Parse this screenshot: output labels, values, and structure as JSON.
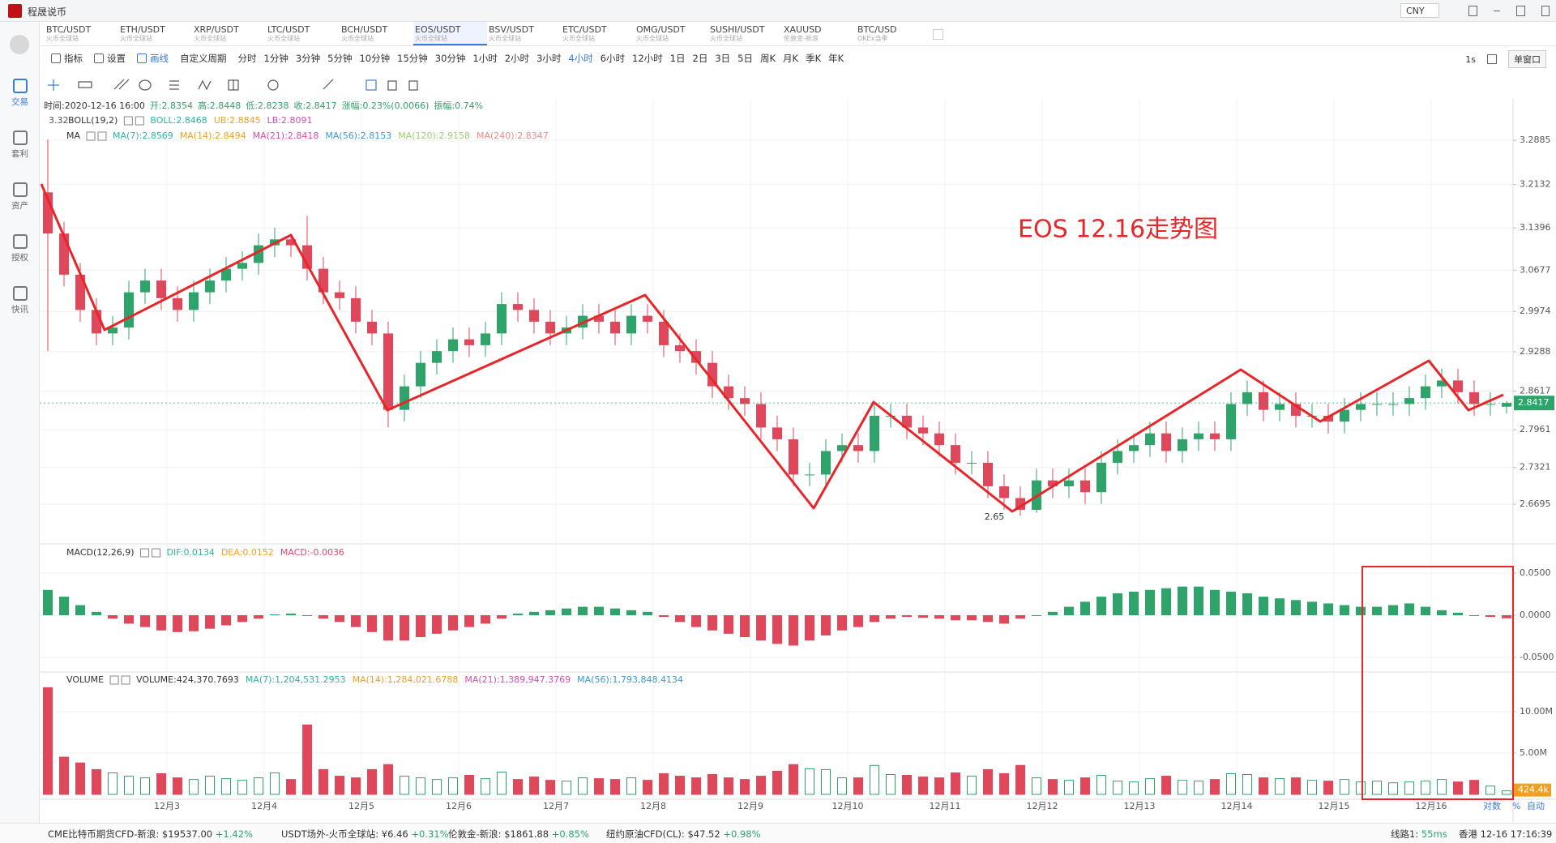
{
  "app": {
    "title": "程晟说币",
    "currency": "CNY"
  },
  "tabs": [
    {
      "pair": "BTC/USDT",
      "source": "火币全球站"
    },
    {
      "pair": "ETH/USDT",
      "source": "火币全球站"
    },
    {
      "pair": "XRP/USDT",
      "source": "火币全球站"
    },
    {
      "pair": "LTC/USDT",
      "source": "火币全球站"
    },
    {
      "pair": "BCH/USDT",
      "source": "火币全球站"
    },
    {
      "pair": "EOS/USDT",
      "source": "火币全球站"
    },
    {
      "pair": "BSV/USDT",
      "source": "火币全球站"
    },
    {
      "pair": "ETC/USDT",
      "source": "火币全球站"
    },
    {
      "pair": "OMG/USDT",
      "source": "火币全球站"
    },
    {
      "pair": "SUSHI/USDT",
      "source": "火币全球站"
    },
    {
      "pair": "XAUUSD",
      "source": "伦敦金-新浪"
    },
    {
      "pair": "BTC/USD",
      "source": "OKEx当季"
    }
  ],
  "active_tab": 5,
  "sidebar": [
    "交易",
    "套利",
    "资产",
    "授权",
    "快讯"
  ],
  "toolbar": {
    "tools": [
      "指标",
      "设置",
      "画线"
    ],
    "custom": "自定义周期",
    "periods": [
      "分时",
      "1分钟",
      "3分钟",
      "5分钟",
      "10分钟",
      "15分钟",
      "30分钟",
      "1小时",
      "2小时",
      "3小时",
      "4小时",
      "6小时",
      "12小时",
      "1日",
      "2日",
      "3日",
      "5日",
      "周K",
      "月K",
      "季K",
      "年K"
    ],
    "active_period": 10,
    "refresh": "1s",
    "window": "单窗口"
  },
  "info": [
    "时间:2020-12-16 16:00",
    "开:2.8354",
    "高:2.8448",
    "低:2.8238",
    "收:2.8417",
    "涨幅:0.23%(0.0066)",
    "振幅:0.74%"
  ],
  "chart_data": {
    "type": "candlestick",
    "title": "EOS 12.16走势图",
    "x_labels": [
      "12月3",
      "12月4",
      "12月5",
      "12月6",
      "12月7",
      "12月8",
      "12月9",
      "12月10",
      "12月11",
      "12月12",
      "12月13",
      "12月14",
      "12月15",
      "12月16"
    ],
    "open": [
      3.2,
      3.13,
      3.06,
      3.0,
      2.96,
      2.97,
      3.03,
      3.05,
      3.02,
      3.0,
      3.03,
      3.05,
      3.07,
      3.08,
      3.11,
      3.12,
      3.11,
      3.07,
      3.03,
      3.02,
      2.98,
      2.96,
      2.83,
      2.87,
      2.91,
      2.93,
      2.95,
      2.94,
      2.96,
      3.01,
      3.0,
      2.98,
      2.96,
      2.97,
      2.99,
      2.98,
      2.96,
      2.99,
      2.98,
      2.94,
      2.93,
      2.91,
      2.87,
      2.85,
      2.84,
      2.8,
      2.78,
      2.72,
      2.72,
      2.76,
      2.77,
      2.76,
      2.82,
      2.82,
      2.8,
      2.79,
      2.77,
      2.74,
      2.74,
      2.7,
      2.68,
      2.66,
      2.71,
      2.7,
      2.71,
      2.69,
      2.74,
      2.76,
      2.77,
      2.79,
      2.76,
      2.78,
      2.79,
      2.78,
      2.84,
      2.86,
      2.83,
      2.84,
      2.82,
      2.82,
      2.81,
      2.83,
      2.84,
      2.84,
      2.84,
      2.85,
      2.87,
      2.88,
      2.86,
      2.84,
      2.8354
    ],
    "high": [
      3.29,
      3.15,
      3.08,
      3.02,
      2.99,
      3.05,
      3.07,
      3.07,
      3.04,
      3.05,
      3.07,
      3.09,
      3.1,
      3.13,
      3.14,
      3.13,
      3.16,
      3.09,
      3.05,
      3.04,
      3.0,
      2.98,
      2.89,
      2.93,
      2.95,
      2.97,
      2.97,
      2.98,
      3.03,
      3.03,
      3.02,
      3.0,
      2.99,
      3.01,
      3.01,
      3.0,
      3.01,
      3.01,
      3.0,
      2.96,
      2.95,
      2.93,
      2.89,
      2.87,
      2.86,
      2.82,
      2.8,
      2.74,
      2.78,
      2.79,
      2.79,
      2.84,
      2.84,
      2.84,
      2.82,
      2.81,
      2.79,
      2.76,
      2.76,
      2.72,
      2.7,
      2.73,
      2.73,
      2.73,
      2.73,
      2.76,
      2.78,
      2.79,
      2.81,
      2.81,
      2.8,
      2.81,
      2.81,
      2.86,
      2.88,
      2.88,
      2.86,
      2.86,
      2.84,
      2.84,
      2.85,
      2.86,
      2.86,
      2.86,
      2.87,
      2.89,
      2.9,
      2.9,
      2.88,
      2.86,
      2.8448
    ],
    "low": [
      2.93,
      3.04,
      2.98,
      2.94,
      2.94,
      2.95,
      3.01,
      3.0,
      2.98,
      2.98,
      3.01,
      3.03,
      3.05,
      3.06,
      3.09,
      3.09,
      3.05,
      3.01,
      3.0,
      2.96,
      2.94,
      2.8,
      2.81,
      2.85,
      2.89,
      2.91,
      2.92,
      2.92,
      2.94,
      2.98,
      2.96,
      2.94,
      2.94,
      2.95,
      2.96,
      2.94,
      2.94,
      2.96,
      2.92,
      2.91,
      2.89,
      2.85,
      2.83,
      2.82,
      2.78,
      2.76,
      2.7,
      2.7,
      2.7,
      2.74,
      2.74,
      2.74,
      2.8,
      2.78,
      2.77,
      2.75,
      2.72,
      2.72,
      2.68,
      2.66,
      2.65,
      2.655,
      2.68,
      2.68,
      2.67,
      2.67,
      2.72,
      2.74,
      2.75,
      2.74,
      2.74,
      2.76,
      2.76,
      2.76,
      2.82,
      2.81,
      2.81,
      2.8,
      2.8,
      2.79,
      2.79,
      2.81,
      2.82,
      2.82,
      2.82,
      2.83,
      2.85,
      2.84,
      2.82,
      2.82,
      2.8238
    ],
    "close": [
      3.13,
      3.06,
      3.0,
      2.96,
      2.97,
      3.03,
      3.05,
      3.02,
      3.0,
      3.03,
      3.05,
      3.07,
      3.08,
      3.11,
      3.12,
      3.11,
      3.07,
      3.03,
      3.02,
      2.98,
      2.96,
      2.83,
      2.87,
      2.91,
      2.93,
      2.95,
      2.94,
      2.96,
      3.01,
      3.0,
      2.98,
      2.96,
      2.97,
      2.99,
      2.98,
      2.96,
      2.99,
      2.98,
      2.94,
      2.93,
      2.91,
      2.87,
      2.85,
      2.84,
      2.8,
      2.78,
      2.72,
      2.72,
      2.76,
      2.77,
      2.76,
      2.82,
      2.82,
      2.8,
      2.79,
      2.77,
      2.74,
      2.74,
      2.7,
      2.68,
      2.66,
      2.71,
      2.7,
      2.71,
      2.69,
      2.74,
      2.76,
      2.77,
      2.79,
      2.76,
      2.78,
      2.79,
      2.78,
      2.84,
      2.86,
      2.83,
      2.84,
      2.82,
      2.82,
      2.81,
      2.83,
      2.84,
      2.84,
      2.84,
      2.85,
      2.87,
      2.88,
      2.86,
      2.84,
      2.84,
      2.8417
    ],
    "up_color": "#2ea46b",
    "down_color": "#e0475a",
    "ylim": [
      2.602,
      3.359
    ],
    "yticks": [
      3.2885,
      3.2132,
      3.1396,
      3.0677,
      2.9974,
      2.9288,
      2.8617,
      2.7961,
      2.7321,
      2.6695
    ],
    "grid": true,
    "last_price": "2.8417",
    "left_marker": "3.32",
    "low_label": "2.65",
    "boll_legend": [
      {
        "text": "BOLL(19,2)",
        "color": "#333333"
      },
      {
        "text": "BOLL:2.8468",
        "color": "#2bb5a0"
      },
      {
        "text": "UB:2.8845",
        "color": "#f0a020"
      },
      {
        "text": "LB:2.8091",
        "color": "#d84cb0"
      }
    ],
    "ma_legend": [
      {
        "text": "MA",
        "color": "#333333"
      },
      {
        "text": "MA(7):2.8569",
        "color": "#2bb5a0"
      },
      {
        "text": "MA(14):2.8494",
        "color": "#f0a020"
      },
      {
        "text": "MA(21):2.8418",
        "color": "#d84cb0"
      },
      {
        "text": "MA(56):2.8153",
        "color": "#3a9ad9"
      },
      {
        "text": "MA(120):2.9158",
        "color": "#9ccf6f"
      },
      {
        "text": "MA(240):2.8347",
        "color": "#ee8a8a"
      }
    ],
    "macd": {
      "legend": [
        {
          "text": "MACD(12,26,9)",
          "color": "#333333"
        },
        {
          "text": "DIF:0.0134",
          "color": "#2bb5a0"
        },
        {
          "text": "DEA:0.0152",
          "color": "#f0a020"
        },
        {
          "text": "MACD:-0.0036",
          "color": "#d84c6a"
        }
      ],
      "values": [
        0.03,
        0.022,
        0.012,
        0.004,
        -0.004,
        -0.01,
        -0.014,
        -0.018,
        -0.02,
        -0.019,
        -0.016,
        -0.012,
        -0.008,
        -0.004,
        0.001,
        0.002,
        0.0,
        -0.004,
        -0.008,
        -0.014,
        -0.02,
        -0.03,
        -0.03,
        -0.026,
        -0.022,
        -0.018,
        -0.014,
        -0.01,
        -0.004,
        0.002,
        0.004,
        0.006,
        0.008,
        0.01,
        0.01,
        0.008,
        0.006,
        0.004,
        -0.002,
        -0.008,
        -0.014,
        -0.018,
        -0.022,
        -0.026,
        -0.03,
        -0.034,
        -0.036,
        -0.03,
        -0.024,
        -0.018,
        -0.014,
        -0.008,
        -0.004,
        -0.002,
        -0.003,
        -0.004,
        -0.006,
        -0.006,
        -0.008,
        -0.01,
        -0.004,
        0.0,
        0.004,
        0.01,
        0.016,
        0.022,
        0.026,
        0.028,
        0.03,
        0.032,
        0.034,
        0.034,
        0.03,
        0.028,
        0.026,
        0.022,
        0.02,
        0.018,
        0.016,
        0.014,
        0.012,
        0.01,
        0.01,
        0.012,
        0.014,
        0.01,
        0.006,
        0.003,
        0.0,
        -0.002,
        -0.0036
      ],
      "ylim": [
        -0.0673,
        0.0827
      ],
      "yticks": [
        {
          "value": 0.05,
          "label": "0.0500"
        },
        {
          "value": 0,
          "label": "0.0000"
        },
        {
          "value": -0.05,
          "label": "-0.0500"
        }
      ]
    },
    "volume": {
      "legend": [
        {
          "text": "VOLUME",
          "color": "#333333"
        },
        {
          "text": "VOLUME:424,370.7693",
          "color": "#333333"
        },
        {
          "text": "MA(7):1,204,531.2953",
          "color": "#2bb5a0"
        },
        {
          "text": "MA(14):1,284,021.6788",
          "color": "#f0a020"
        },
        {
          "text": "MA(21):1,389,947.3769",
          "color": "#d84cb0"
        },
        {
          "text": "MA(56):1,793,848.4134",
          "color": "#3a9ad9"
        }
      ],
      "values": [
        12.9,
        4.5,
        3.8,
        3.0,
        2.6,
        2.2,
        2.0,
        2.5,
        2.0,
        1.8,
        2.2,
        1.9,
        1.7,
        2.0,
        2.6,
        1.8,
        8.4,
        3.0,
        2.2,
        2.0,
        3.0,
        3.6,
        2.2,
        2.0,
        1.8,
        2.0,
        2.3,
        1.9,
        2.7,
        1.8,
        2.1,
        1.7,
        1.6,
        2.0,
        1.9,
        1.8,
        2.0,
        1.7,
        2.5,
        2.2,
        2.0,
        2.4,
        2.0,
        1.8,
        2.2,
        2.8,
        3.6,
        3.1,
        3.0,
        2.0,
        2.0,
        3.5,
        2.4,
        2.3,
        2.1,
        2.0,
        2.6,
        2.2,
        3.0,
        2.5,
        3.5,
        2.0,
        1.8,
        1.7,
        2.0,
        2.3,
        1.6,
        1.5,
        1.9,
        2.2,
        1.7,
        1.6,
        1.8,
        2.5,
        2.4,
        2.0,
        1.9,
        2.0,
        1.7,
        1.6,
        1.8,
        1.5,
        1.6,
        1.4,
        1.5,
        1.6,
        1.8,
        1.5,
        1.7,
        1.0,
        0.4244
      ],
      "value_label": "424.4k",
      "ylim": [
        0,
        14.7
      ],
      "yticks": [
        {
          "value": 10,
          "label": "10.00M"
        },
        {
          "value": 5,
          "label": "5.00M"
        }
      ]
    },
    "scale_options": [
      "对数",
      "%",
      "自动"
    ]
  },
  "status": [
    {
      "name": "CME比特币期货CFD-新浪:",
      "price": "$19537.00",
      "change": "+1.42%"
    },
    {
      "name": "USDT场外-火币全球站:",
      "price": "¥6.46",
      "change": "+0.31%"
    },
    {
      "name": "伦敦金-新浪:",
      "price": "$1861.88",
      "change": "+0.85%"
    },
    {
      "name": "纽约原油CFD(CL):",
      "price": "$47.52",
      "change": "+0.98%"
    }
  ],
  "network": {
    "line": "线路1:",
    "latency": "55ms",
    "clock": "香港 12-16 17:16:39"
  }
}
